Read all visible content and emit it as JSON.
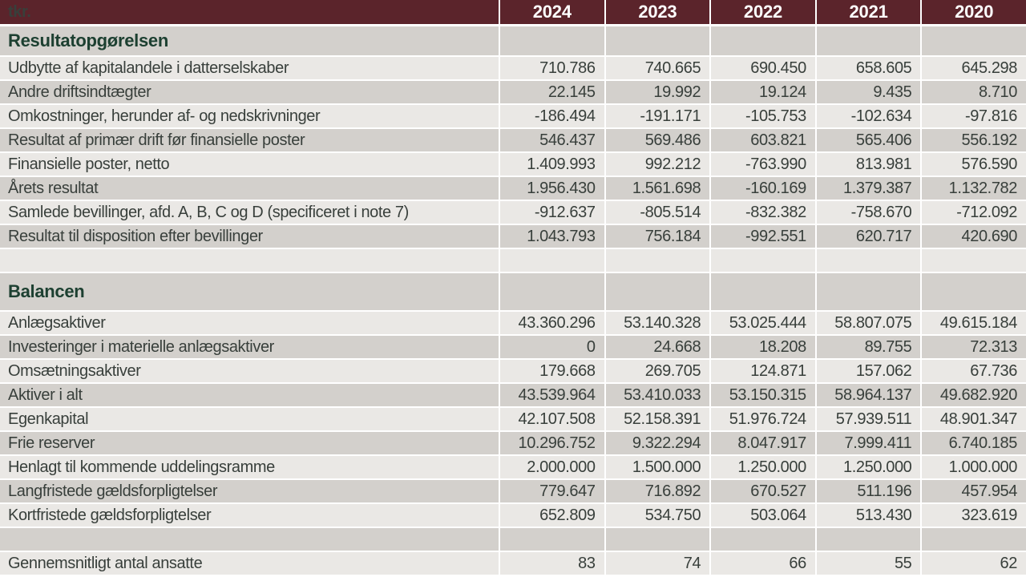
{
  "unit_label": "tkr.",
  "years": [
    "2024",
    "2023",
    "2022",
    "2021",
    "2020"
  ],
  "colors": {
    "header_bg": "#5b242b",
    "row_light": "#eae8e5",
    "row_dark": "#d3d0cc",
    "separator": "#ffffff",
    "body_text": "#383f3b",
    "section_text": "#1d4031",
    "header_text": "#ffffff"
  },
  "rows": [
    {
      "type": "section",
      "label": "Resultatopgørelsen"
    },
    {
      "type": "data",
      "label": "Udbytte af kapitalandele i datterselskaber",
      "values": [
        "710.786",
        "740.665",
        "690.450",
        "658.605",
        "645.298"
      ]
    },
    {
      "type": "data",
      "label": "Andre driftsindtægter",
      "values": [
        "22.145",
        "19.992",
        "19.124",
        "9.435",
        "8.710"
      ]
    },
    {
      "type": "data",
      "label": "Omkostninger, herunder af- og nedskrivninger",
      "values": [
        "-186.494",
        "-191.171",
        "-105.753",
        "-102.634",
        "-97.816"
      ]
    },
    {
      "type": "data",
      "label": "Resultat af primær drift før finansielle poster",
      "values": [
        "546.437",
        "569.486",
        "603.821",
        "565.406",
        "556.192"
      ]
    },
    {
      "type": "data",
      "label": "Finansielle poster, netto",
      "values": [
        "1.409.993",
        "992.212",
        "-763.990",
        "813.981",
        "576.590"
      ]
    },
    {
      "type": "data",
      "label": "Årets resultat",
      "values": [
        "1.956.430",
        "1.561.698",
        "-160.169",
        "1.379.387",
        "1.132.782"
      ]
    },
    {
      "type": "data",
      "label": "Samlede bevillinger, afd. A, B, C og D (specificeret i note 7)",
      "values": [
        "-912.637",
        "-805.514",
        "-832.382",
        "-758.670",
        "-712.092"
      ]
    },
    {
      "type": "data",
      "label": "Resultat til disposition efter bevillinger",
      "values": [
        "1.043.793",
        "756.184",
        "-992.551",
        "620.717",
        "420.690"
      ]
    },
    {
      "type": "spacer"
    },
    {
      "type": "section",
      "label": "Balancen"
    },
    {
      "type": "data",
      "label": "Anlægsaktiver",
      "values": [
        "43.360.296",
        "53.140.328",
        "53.025.444",
        "58.807.075",
        "49.615.184"
      ]
    },
    {
      "type": "data",
      "label": "Investeringer i materielle anlægsaktiver",
      "values": [
        "0",
        "24.668",
        "18.208",
        "89.755",
        "72.313"
      ]
    },
    {
      "type": "data",
      "label": "Omsætningsaktiver",
      "values": [
        "179.668",
        "269.705",
        "124.871",
        "157.062",
        "67.736"
      ]
    },
    {
      "type": "data",
      "label": "Aktiver i alt",
      "values": [
        "43.539.964",
        "53.410.033",
        "53.150.315",
        "58.964.137",
        "49.682.920"
      ]
    },
    {
      "type": "data",
      "label": "Egenkapital",
      "values": [
        "42.107.508",
        "52.158.391",
        "51.976.724",
        "57.939.511",
        "48.901.347"
      ]
    },
    {
      "type": "data",
      "label": "Frie reserver",
      "values": [
        "10.296.752",
        "9.322.294",
        "8.047.917",
        "7.999.411",
        "6.740.185"
      ]
    },
    {
      "type": "data",
      "label": "Henlagt til kommende uddelingsramme",
      "values": [
        "2.000.000",
        "1.500.000",
        "1.250.000",
        "1.250.000",
        "1.000.000"
      ]
    },
    {
      "type": "data",
      "label": "Langfristede gældsforpligtelser",
      "values": [
        "779.647",
        "716.892",
        "670.527",
        "511.196",
        "457.954"
      ]
    },
    {
      "type": "data",
      "label": "Kortfristede gældsforpligtelser",
      "values": [
        "652.809",
        "534.750",
        "503.064",
        "513.430",
        "323.619"
      ]
    },
    {
      "type": "spacer"
    },
    {
      "type": "data",
      "label": "Gennemsnitligt antal ansatte",
      "values": [
        "83",
        "74",
        "66",
        "55",
        "62"
      ]
    }
  ]
}
